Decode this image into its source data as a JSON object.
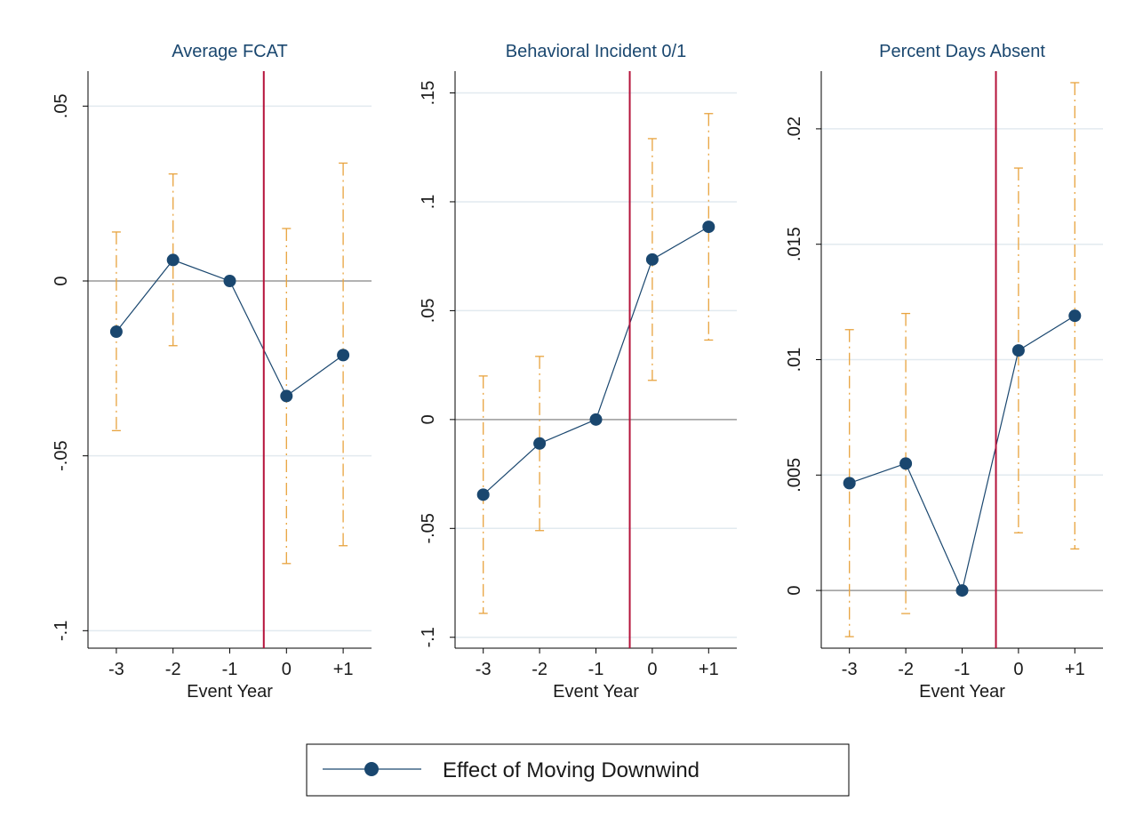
{
  "colors": {
    "point": "#1a476f",
    "line": "#1a476f",
    "ci": "#e8a33e",
    "event_line": "#b5123a",
    "zero_line": "#999999",
    "grid": "#e2eaef",
    "text": "#1a1a1a",
    "title": "#1a476f"
  },
  "legend": {
    "label": "Effect of Moving Downwind",
    "position": "bottom-center"
  },
  "chart_data": [
    {
      "type": "line",
      "title": "Average FCAT",
      "xlabel": "Event Year",
      "ylabel": "",
      "categories": [
        "-3",
        "-2",
        "-1",
        "0",
        "+1"
      ],
      "ylim": [
        -0.105,
        0.06
      ],
      "yticks": [
        -0.1,
        -0.05,
        0,
        0.05
      ],
      "ytick_labels": [
        "-.1",
        "-.05",
        "0",
        ".05"
      ],
      "grid": true,
      "event_line_x": -0.4,
      "series": [
        {
          "name": "Effect of Moving Downwind",
          "values": [
            -0.0145,
            0.006,
            0.0,
            -0.0329,
            -0.0212
          ],
          "ci_low": [
            -0.0428,
            -0.0185,
            0.0,
            -0.0808,
            -0.0757
          ],
          "ci_high": [
            0.014,
            0.0306,
            0.0,
            0.015,
            0.0337
          ]
        }
      ]
    },
    {
      "type": "line",
      "title": "Behavioral Incident 0/1",
      "xlabel": "Event Year",
      "ylabel": "",
      "categories": [
        "-3",
        "-2",
        "-1",
        "0",
        "+1"
      ],
      "ylim": [
        -0.105,
        0.16
      ],
      "yticks": [
        -0.1,
        -0.05,
        0,
        0.05,
        0.1,
        0.15
      ],
      "ytick_labels": [
        "-.1",
        "-.05",
        "0",
        ".05",
        ".1",
        ".15"
      ],
      "grid": true,
      "event_line_x": -0.4,
      "series": [
        {
          "name": "Effect of Moving Downwind",
          "values": [
            -0.0345,
            -0.011,
            0.0,
            0.0735,
            0.0885
          ],
          "ci_low": [
            -0.089,
            -0.051,
            0.0,
            0.018,
            0.0365
          ],
          "ci_high": [
            0.02,
            0.029,
            0.0,
            0.129,
            0.1405
          ]
        }
      ]
    },
    {
      "type": "line",
      "title": "Percent Days Absent",
      "xlabel": "Event Year",
      "ylabel": "",
      "categories": [
        "-3",
        "-2",
        "-1",
        "0",
        "+1"
      ],
      "ylim": [
        -0.0025,
        0.0225
      ],
      "yticks": [
        0,
        0.005,
        0.01,
        0.015,
        0.02
      ],
      "ytick_labels": [
        "0",
        ".005",
        ".01",
        ".015",
        ".02"
      ],
      "grid": true,
      "event_line_x": -0.4,
      "series": [
        {
          "name": "Effect of Moving Downwind",
          "values": [
            0.00465,
            0.0055,
            0.0,
            0.0104,
            0.0119
          ],
          "ci_low": [
            -0.002,
            -0.001,
            0.0,
            0.0025,
            0.0018
          ],
          "ci_high": [
            0.0113,
            0.012,
            0.0,
            0.0183,
            0.022
          ]
        }
      ]
    }
  ]
}
